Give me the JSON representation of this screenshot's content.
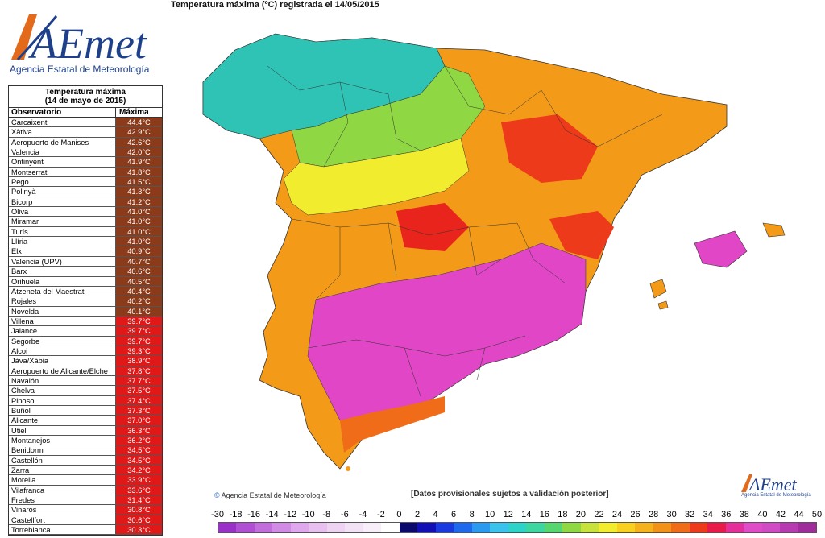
{
  "header": {
    "logo_text": "AEmet",
    "agency": "Agencia Estatal de Meteorología",
    "map_title": "Temperatura máxima (ºC) registrada el 14/05/2015"
  },
  "table": {
    "title_line1": "Temperatura máxima",
    "title_line2": "(14 de mayo de 2015)",
    "col_station": "Observatorio",
    "col_max": "Máxima",
    "rows": [
      {
        "station": "Carcaixent",
        "temp": "44.4°C"
      },
      {
        "station": "Xàtiva",
        "temp": "42.9°C"
      },
      {
        "station": "Aeropuerto de Manises",
        "temp": "42.6°C"
      },
      {
        "station": "Valencia",
        "temp": "42.0°C"
      },
      {
        "station": "Ontinyent",
        "temp": "41.9°C"
      },
      {
        "station": "Montserrat",
        "temp": "41.8°C"
      },
      {
        "station": "Pego",
        "temp": "41.5°C"
      },
      {
        "station": "Polinyà",
        "temp": "41.3°C"
      },
      {
        "station": "Bicorp",
        "temp": "41.2°C"
      },
      {
        "station": "Oliva",
        "temp": "41.0°C"
      },
      {
        "station": "Miramar",
        "temp": "41.0°C"
      },
      {
        "station": "Turís",
        "temp": "41.0°C"
      },
      {
        "station": "Llíria",
        "temp": "41.0°C"
      },
      {
        "station": "Elx",
        "temp": "40.9°C"
      },
      {
        "station": "Valencia (UPV)",
        "temp": "40.7°C"
      },
      {
        "station": "Barx",
        "temp": "40.6°C"
      },
      {
        "station": "Orihuela",
        "temp": "40.5°C"
      },
      {
        "station": "Atzeneta del Maestrat",
        "temp": "40.4°C"
      },
      {
        "station": "Rojales",
        "temp": "40.2°C"
      },
      {
        "station": "Novelda",
        "temp": "40.1°C"
      },
      {
        "station": "Villena",
        "temp": "39.7°C"
      },
      {
        "station": "Jalance",
        "temp": "39.7°C"
      },
      {
        "station": "Segorbe",
        "temp": "39.7°C"
      },
      {
        "station": "Alcoi",
        "temp": "39.3°C"
      },
      {
        "station": "Jàva/Xàbia",
        "temp": "38.9°C"
      },
      {
        "station": "Aeropuerto de Alicante/Elche",
        "temp": "37.8°C"
      },
      {
        "station": "Navalón",
        "temp": "37.7°C"
      },
      {
        "station": "Chelva",
        "temp": "37.5°C"
      },
      {
        "station": "Pinoso",
        "temp": "37.4°C"
      },
      {
        "station": "Buñol",
        "temp": "37.3°C"
      },
      {
        "station": "Alicante",
        "temp": "37.0°C"
      },
      {
        "station": "Utiel",
        "temp": "36.3°C"
      },
      {
        "station": "Montanejos",
        "temp": "36.2°C"
      },
      {
        "station": "Benidorm",
        "temp": "34.5°C"
      },
      {
        "station": "Castellón",
        "temp": "34.5°C"
      },
      {
        "station": "Zarra",
        "temp": "34.2°C"
      },
      {
        "station": "Morella",
        "temp": "33.9°C"
      },
      {
        "station": "Vilafranca",
        "temp": "33.6°C"
      },
      {
        "station": "Fredes",
        "temp": "31.4°C"
      },
      {
        "station": "Vinaròs",
        "temp": "30.8°C"
      },
      {
        "station": "Castellfort",
        "temp": "30.6°C"
      },
      {
        "station": "Torreblanca",
        "temp": "30.3°C"
      }
    ]
  },
  "footer": {
    "copyright": "Agencia Estatal de Meteorología",
    "disclaimer": "[Datos provisionales sujetos a validación posterior]",
    "small_logo": "AEmet",
    "small_logo_sub": "Agencia Estatal de Meteorología"
  },
  "legend": {
    "ticks": [
      "-30",
      "-18",
      "-16",
      "-14",
      "-12",
      "-10",
      "-8",
      "-6",
      "-4",
      "-2",
      "0",
      "2",
      "4",
      "6",
      "8",
      "10",
      "12",
      "14",
      "16",
      "18",
      "20",
      "22",
      "24",
      "26",
      "28",
      "30",
      "32",
      "34",
      "36",
      "38",
      "40",
      "42",
      "44",
      "50"
    ],
    "colors": [
      "#9b30c8",
      "#b04fd4",
      "#c26ddc",
      "#d28be4",
      "#e0a8ec",
      "#e8c0f0",
      "#eed3f3",
      "#f3e2f6",
      "#f8eef9",
      "#ffffff",
      "#0a0a6e",
      "#1010b4",
      "#1a3ae0",
      "#1f69ec",
      "#2a9af0",
      "#3bc3ee",
      "#2ed3c8",
      "#3dd6a0",
      "#55d66e",
      "#8fd843",
      "#c7e23a",
      "#f2ec2e",
      "#f7d022",
      "#f5b21c",
      "#f39219",
      "#f06c18",
      "#ec3a1b",
      "#e81a4a",
      "#e42f9a",
      "#e04cc8",
      "#d04ac6",
      "#b83ab2",
      "#a02c9c"
    ],
    "row_color_high": "#8b3a1a",
    "row_color_mid": "#e01818"
  },
  "colors": {
    "cool": "#2fc3b5",
    "warm": "#f39a19",
    "hot": "#e8241c",
    "extreme": "#e046c6"
  }
}
